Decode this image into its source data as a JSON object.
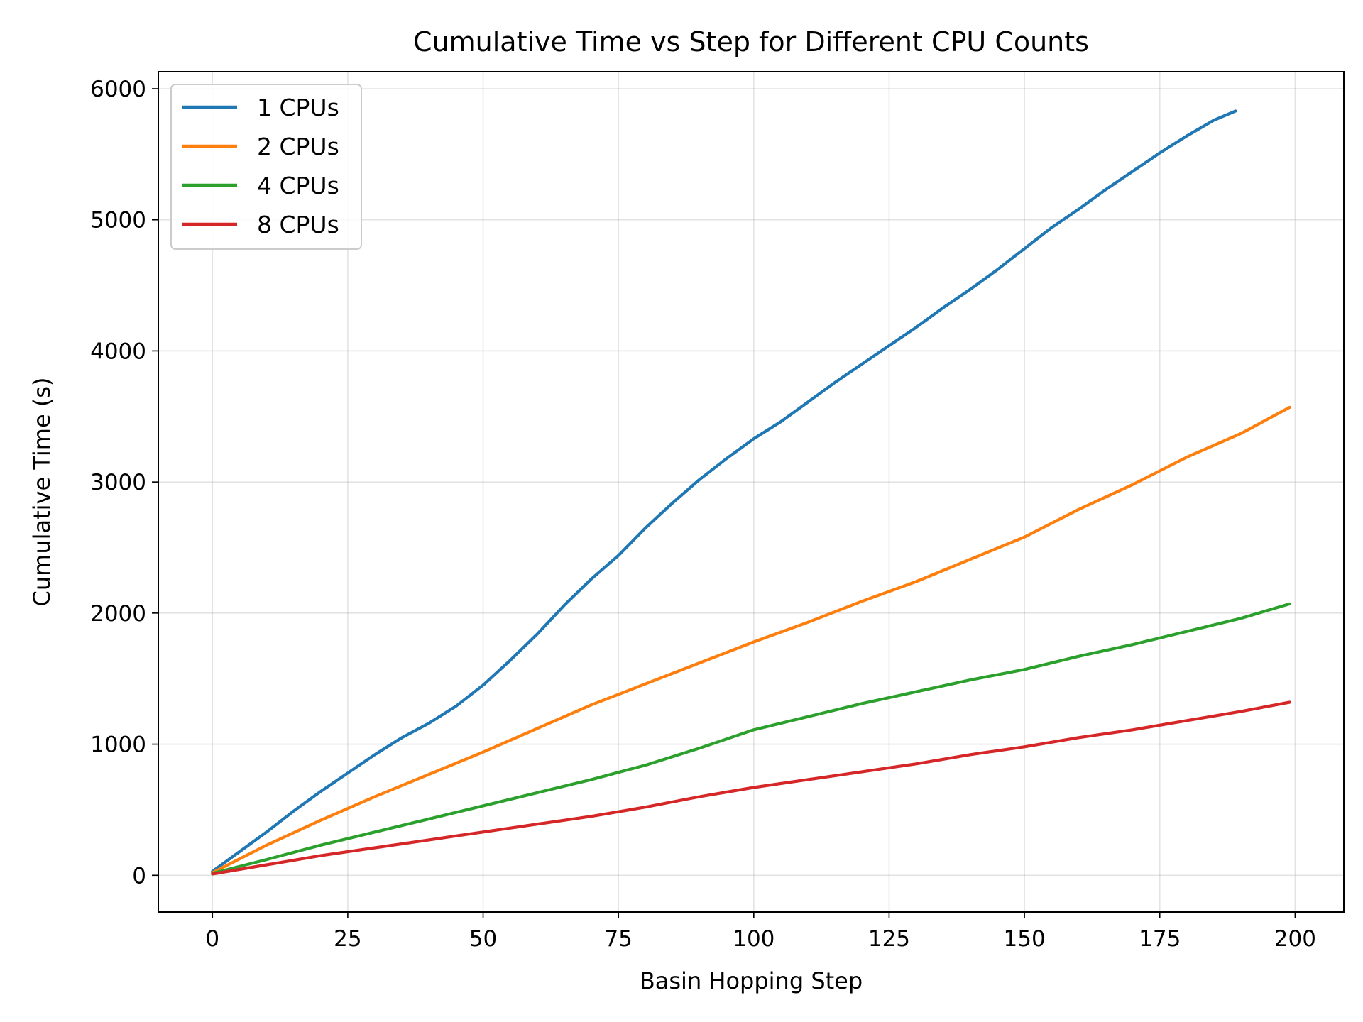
{
  "chart_data": {
    "type": "line",
    "title": "Cumulative Time vs Step for Different CPU Counts",
    "xlabel": "Basin Hopping Step",
    "ylabel": "Cumulative Time (s)",
    "xlim": [
      -10,
      209
    ],
    "ylim": [
      -280,
      6130
    ],
    "xticks": [
      0,
      25,
      50,
      75,
      100,
      125,
      150,
      175,
      200
    ],
    "yticks": [
      0,
      1000,
      2000,
      3000,
      4000,
      5000,
      6000
    ],
    "grid": true,
    "legend_position": "top-left",
    "series": [
      {
        "name": "1 CPUs",
        "color": "#1f77b4",
        "x": [
          0,
          5,
          10,
          15,
          20,
          25,
          30,
          35,
          40,
          45,
          50,
          55,
          60,
          65,
          70,
          75,
          80,
          85,
          90,
          95,
          100,
          105,
          110,
          115,
          120,
          125,
          130,
          135,
          140,
          145,
          150,
          155,
          160,
          165,
          170,
          175,
          180,
          185,
          189
        ],
        "y": [
          30,
          180,
          330,
          490,
          640,
          780,
          920,
          1050,
          1160,
          1290,
          1450,
          1640,
          1840,
          2060,
          2260,
          2440,
          2650,
          2840,
          3020,
          3180,
          3330,
          3460,
          3610,
          3760,
          3900,
          4040,
          4180,
          4330,
          4470,
          4620,
          4780,
          4940,
          5080,
          5230,
          5370,
          5510,
          5640,
          5760,
          5830
        ]
      },
      {
        "name": "2 CPUs",
        "color": "#ff7f0e",
        "x": [
          0,
          10,
          20,
          30,
          40,
          50,
          60,
          70,
          80,
          90,
          100,
          110,
          120,
          130,
          140,
          150,
          160,
          170,
          180,
          190,
          199
        ],
        "y": [
          20,
          230,
          420,
          600,
          770,
          940,
          1120,
          1300,
          1460,
          1620,
          1780,
          1930,
          2090,
          2240,
          2410,
          2580,
          2790,
          2980,
          3190,
          3370,
          3570
        ]
      },
      {
        "name": "4 CPUs",
        "color": "#2ca02c",
        "x": [
          0,
          10,
          20,
          30,
          40,
          50,
          60,
          70,
          80,
          90,
          100,
          110,
          120,
          130,
          140,
          150,
          160,
          170,
          180,
          190,
          199
        ],
        "y": [
          15,
          120,
          230,
          330,
          430,
          530,
          630,
          730,
          840,
          970,
          1110,
          1210,
          1310,
          1400,
          1490,
          1570,
          1670,
          1760,
          1860,
          1960,
          2070
        ]
      },
      {
        "name": "8 CPUs",
        "color": "#d62728",
        "x": [
          0,
          10,
          20,
          30,
          40,
          50,
          60,
          70,
          80,
          90,
          100,
          110,
          120,
          130,
          140,
          150,
          160,
          170,
          180,
          190,
          199
        ],
        "y": [
          10,
          80,
          150,
          210,
          270,
          330,
          390,
          450,
          520,
          600,
          670,
          730,
          790,
          850,
          920,
          980,
          1050,
          1110,
          1180,
          1250,
          1320
        ]
      }
    ]
  }
}
